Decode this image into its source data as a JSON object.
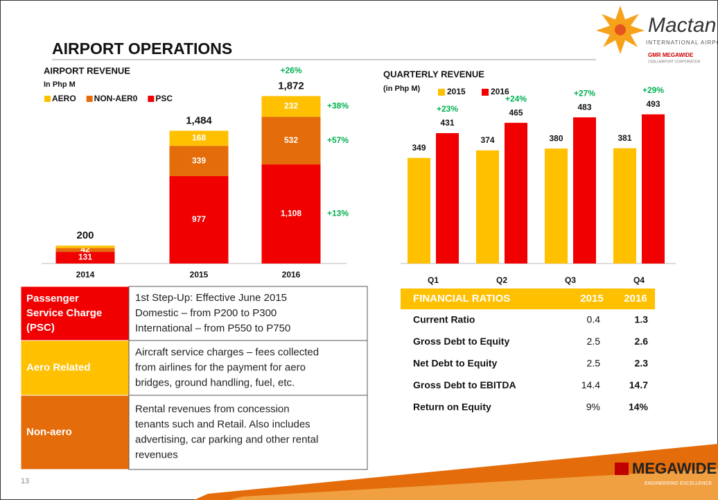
{
  "title": "AIRPORT OPERATIONS",
  "page_number": "13",
  "logos": {
    "airport": "Mactan Cebu",
    "airport_sub": "INTERNATIONAL AIRPORT",
    "corp": "GMR MEGAWIDE",
    "corp_sub": "CEBU AIRPORT CORPORATION",
    "brand": "MEGAWIDE",
    "brand_sub": "ENGINEERING EXCELLENCE"
  },
  "chart_data": [
    {
      "type": "stacked_bar",
      "title": "AIRPORT REVENUE",
      "subtitle": "In Php M",
      "categories": [
        "2014",
        "2015",
        "2016"
      ],
      "ylim": [
        0,
        2000
      ],
      "series": [
        {
          "name": "PSC",
          "color": "#f00000",
          "values": [
            131,
            977,
            1108
          ],
          "value_labels": [
            "131",
            "977",
            "1,108"
          ],
          "growth_labels": [
            null,
            null,
            "+13%"
          ]
        },
        {
          "name": "NON-AER0",
          "color": "#e46c0a",
          "values": [
            42,
            339,
            532
          ],
          "value_labels": [
            "42",
            "339",
            "532"
          ],
          "growth_labels": [
            null,
            null,
            "+57%"
          ]
        },
        {
          "name": "AERO",
          "color": "#ffc000",
          "values": [
            27,
            168,
            232
          ],
          "value_labels": [
            null,
            "168",
            "232"
          ],
          "growth_labels": [
            null,
            null,
            "+38%"
          ]
        }
      ],
      "totals": [
        200,
        1484,
        1872
      ],
      "total_labels": [
        "200",
        "1,484",
        "1,872"
      ],
      "total_growth_labels": [
        null,
        null,
        "+26%"
      ]
    },
    {
      "type": "bar",
      "title": "QUARTERLY REVENUE",
      "subtitle": "(in Php M)",
      "categories": [
        "Q1",
        "Q2",
        "Q3",
        "Q4"
      ],
      "ylim": [
        0,
        550
      ],
      "series": [
        {
          "name": "2015",
          "color": "#ffc000",
          "values": [
            349,
            374,
            380,
            381
          ]
        },
        {
          "name": "2016",
          "color": "#f00000",
          "values": [
            431,
            465,
            483,
            493
          ],
          "growth_labels": [
            "+23%",
            "+24%",
            "+27%",
            "+29%"
          ]
        }
      ]
    }
  ],
  "info_table": {
    "rows": [
      {
        "label": [
          "Passenger",
          "Service Charge",
          "(PSC)"
        ],
        "color": "#f00000",
        "text": [
          "1st Step-Up: Effective June 2015",
          "Domestic – from P200 to P300",
          "International – from P550 to P750"
        ]
      },
      {
        "label": [
          "Aero Related"
        ],
        "color": "#ffc000",
        "text": [
          "Aircraft service charges – fees collected",
          "from airlines for the payment for aero",
          "bridges, ground handling, fuel, etc."
        ]
      },
      {
        "label": [
          "Non-aero"
        ],
        "color": "#e46c0a",
        "text": [
          "Rental revenues from concession",
          "tenants such and Retail. Also includes",
          "advertising, car parking and other rental",
          "revenues"
        ]
      }
    ]
  },
  "ratios_table": {
    "header": [
      "FINANCIAL RATIOS",
      "2015",
      "2016"
    ],
    "rows": [
      [
        "Current Ratio",
        "0.4",
        "1.3"
      ],
      [
        "Gross Debt to Equity",
        "2.5",
        "2.6"
      ],
      [
        "Net Debt to Equity",
        "2.5",
        "2.3"
      ],
      [
        "Gross Debt to EBITDA",
        "14.4",
        "14.7"
      ],
      [
        "Return on Equity",
        "9%",
        "14%"
      ]
    ]
  }
}
